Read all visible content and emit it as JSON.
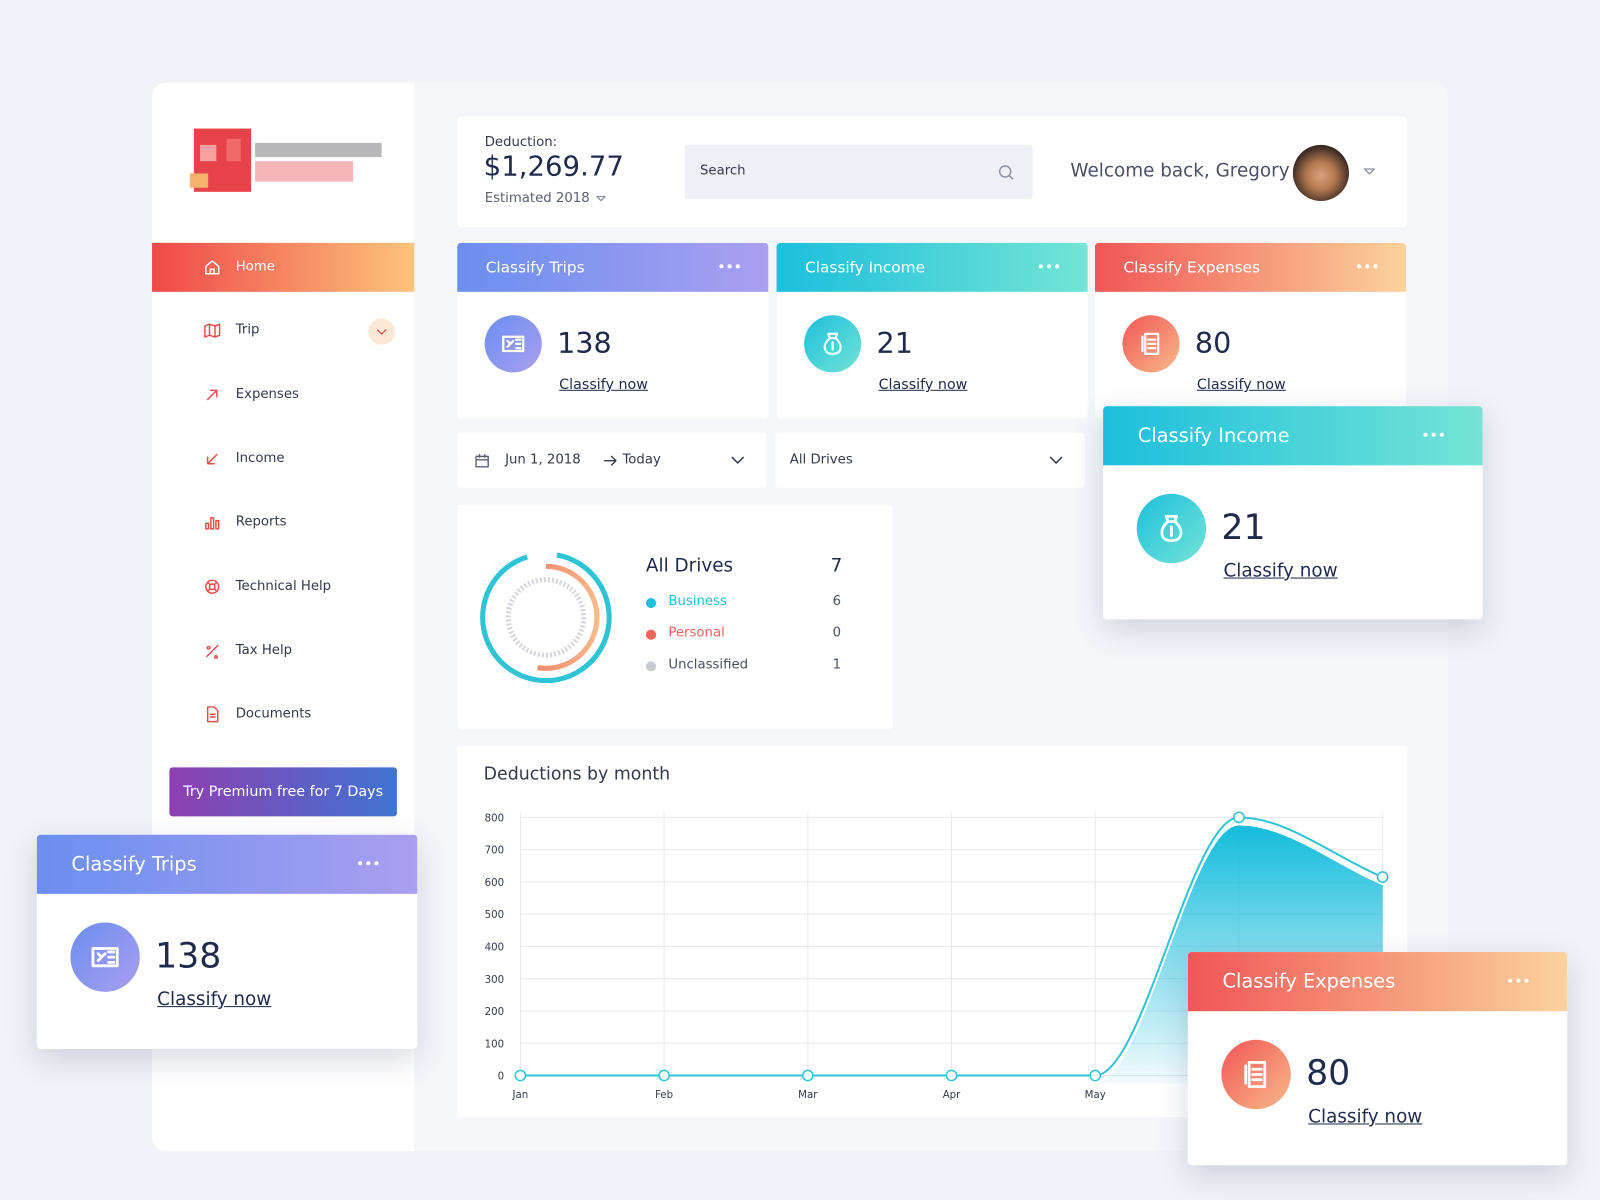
{
  "sidebar": {
    "nav": [
      "Home",
      "Trip",
      "Expenses",
      "Income",
      "Reports",
      "Technical Help",
      "Tax Help",
      "Documents"
    ],
    "premium": "Try Premium free for 7 Days"
  },
  "header": {
    "deduction_label": "Deduction:",
    "deduction": "$1,269.77",
    "period": "Estimated 2018",
    "search": "Search",
    "welcome": "Welcome back, Gregory"
  },
  "cards": [
    {
      "title": "Classify Trips",
      "count": 138,
      "action": "Classify now"
    },
    {
      "title": "Classify Income",
      "count": 21,
      "action": "Classify now"
    },
    {
      "title": "Classify Expenses",
      "count": 80,
      "action": "Classify now"
    }
  ],
  "filters": {
    "date_from": "Jun 1, 2018",
    "date_to": "Today",
    "drives": "All Drives"
  },
  "drives": {
    "title": "All Drives",
    "total": 7,
    "rows": [
      {
        "name": "Business",
        "count": 6,
        "color": "#1fc0dc"
      },
      {
        "name": "Personal",
        "count": 0,
        "color": "#f2665a"
      },
      {
        "name": "Unclassified",
        "count": 1,
        "color": "#c9ccd3"
      }
    ]
  },
  "chart_data": {
    "type": "line",
    "title": "Deductions by month",
    "categories": [
      "Jan",
      "Feb",
      "Mar",
      "Apr",
      "May",
      null,
      null
    ],
    "values": [
      0,
      0,
      0,
      0,
      0,
      800,
      615
    ],
    "color": "#2ec4d6",
    "ylim": [
      0,
      800
    ],
    "yticks": [
      0,
      100,
      200,
      300,
      400,
      500,
      600,
      700,
      800
    ],
    "grid": true
  }
}
